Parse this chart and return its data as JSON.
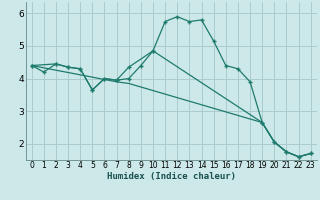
{
  "title": "",
  "xlabel": "Humidex (Indice chaleur)",
  "bg_color": "#cce8e8",
  "grid_color": "#aacccc",
  "line_color": "#1e7b6e",
  "xlim": [
    -0.5,
    23.5
  ],
  "ylim": [
    1.5,
    6.35
  ],
  "xticks": [
    0,
    1,
    2,
    3,
    4,
    5,
    6,
    7,
    8,
    9,
    10,
    11,
    12,
    13,
    14,
    15,
    16,
    17,
    18,
    19,
    20,
    21,
    22,
    23
  ],
  "yticks": [
    2,
    3,
    4,
    5,
    6
  ],
  "line1_x": [
    0,
    1,
    2,
    3,
    4,
    5,
    6,
    7,
    8,
    9,
    10,
    11,
    12,
    13,
    14,
    15,
    16,
    17,
    18,
    19,
    20,
    21,
    22,
    23
  ],
  "line1_y": [
    4.4,
    4.2,
    4.45,
    4.35,
    4.3,
    3.65,
    4.0,
    3.95,
    4.0,
    4.4,
    4.85,
    5.75,
    5.9,
    5.75,
    5.8,
    5.15,
    4.4,
    4.3,
    3.9,
    2.65,
    2.05,
    1.75,
    1.6,
    1.7
  ],
  "line2_x": [
    0,
    2,
    3,
    4,
    5,
    6,
    7,
    8,
    10,
    19,
    20,
    21,
    22,
    23
  ],
  "line2_y": [
    4.4,
    4.45,
    4.35,
    4.3,
    3.65,
    4.0,
    3.95,
    4.35,
    4.85,
    2.65,
    2.05,
    1.75,
    1.6,
    1.7
  ],
  "line3_x": [
    0,
    7,
    8,
    19,
    20,
    21,
    22,
    23
  ],
  "line3_y": [
    4.4,
    3.9,
    3.85,
    2.65,
    2.05,
    1.75,
    1.6,
    1.7
  ]
}
